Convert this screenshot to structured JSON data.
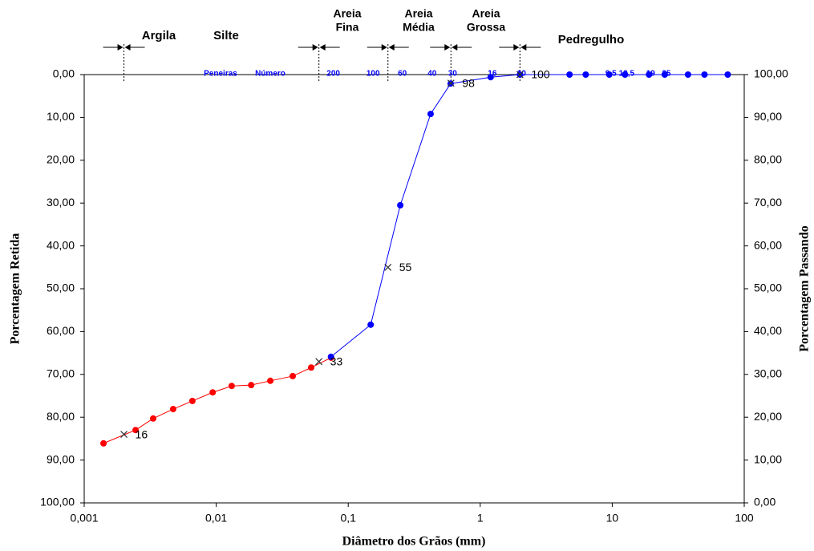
{
  "chart_data": {
    "type": "line",
    "xlabel": "Diâmetro dos Grãos (mm)",
    "ylabel": "Porcentagem Retida",
    "y2label": "Porcentagem Passando",
    "xscale": "log",
    "xlim": [
      0.001,
      100
    ],
    "xticks": [
      {
        "value": 0.001,
        "label": "0,001"
      },
      {
        "value": 0.01,
        "label": "0,01"
      },
      {
        "value": 0.1,
        "label": "0,1"
      },
      1,
      10,
      100
    ],
    "ylim": [
      100,
      0
    ],
    "yticks": [
      {
        "value": 0,
        "label": "0,00"
      },
      {
        "value": 10,
        "label": "10,00"
      },
      {
        "value": 20,
        "label": "20,00"
      },
      {
        "value": 30,
        "label": "30,00"
      },
      {
        "value": 40,
        "label": "40,00"
      },
      {
        "value": 50,
        "label": "50,00"
      },
      {
        "value": 60,
        "label": "60,00"
      },
      {
        "value": 70,
        "label": "70,00"
      },
      {
        "value": 80,
        "label": "80,00"
      },
      {
        "value": 90,
        "label": "90,00"
      },
      {
        "value": 100,
        "label": "100,00"
      }
    ],
    "y2lim": [
      0,
      100
    ],
    "y2ticks": [
      {
        "value": 100,
        "label": "100,00"
      },
      {
        "value": 90,
        "label": "90,00"
      },
      {
        "value": 80,
        "label": "80,00"
      },
      {
        "value": 70,
        "label": "70,00"
      },
      {
        "value": 60,
        "label": "60,00"
      },
      {
        "value": 50,
        "label": "50,00"
      },
      {
        "value": 40,
        "label": "40,00"
      },
      {
        "value": 30,
        "label": "30,00"
      },
      {
        "value": 20,
        "label": "20,00"
      },
      {
        "value": 10,
        "label": "10,00"
      },
      {
        "value": 0,
        "label": "0,00"
      }
    ],
    "series": [
      {
        "color": "#ff0000",
        "axis": "y2",
        "x": [
          0.0014,
          0.00245,
          0.00333,
          0.00472,
          0.0066,
          0.0094,
          0.0131,
          0.0184,
          0.0257,
          0.038,
          0.0524,
          0.0743
        ],
        "values": [
          13.9,
          17.0,
          19.7,
          21.9,
          23.8,
          25.8,
          27.3,
          27.5,
          28.5,
          29.6,
          31.6,
          33.9
        ]
      },
      {
        "color": "#0000ff",
        "axis": "y2",
        "x": [
          0.074,
          0.148,
          0.248,
          0.421,
          0.597,
          1.2,
          2.0,
          4.75,
          6.3,
          9.5,
          12.5,
          19,
          25,
          37.5,
          50,
          75
        ],
        "values": [
          34.1,
          41.6,
          69.5,
          90.8,
          97.9,
          99.4,
          100,
          100,
          100,
          100,
          100,
          100,
          100,
          100,
          100,
          100
        ]
      }
    ],
    "markers": [
      {
        "x": 0.002,
        "value": 16
      },
      {
        "x": 0.06,
        "value": 33
      },
      {
        "x": 0.2,
        "value": 55
      },
      {
        "x": 0.6,
        "value": 98
      },
      {
        "x": 2,
        "value": 100
      }
    ],
    "boundaries": [
      0.002,
      0.06,
      0.2,
      0.6,
      2
    ],
    "soil_classes": [
      [
        "Argila"
      ],
      [
        "Silte"
      ],
      [
        "Areia",
        "Fina"
      ],
      [
        "Areia",
        "Média"
      ],
      [
        "Areia",
        "Grossa"
      ],
      [
        "Pedregulho"
      ]
    ],
    "sieve_title": [
      "Peneiras",
      "Número"
    ],
    "sieves": [
      {
        "x": 0.075,
        "label": "200"
      },
      {
        "x": 0.15,
        "label": "100"
      },
      {
        "x": 0.25,
        "label": "60"
      },
      {
        "x": 0.42,
        "label": "40"
      },
      {
        "x": 0.6,
        "label": "30"
      },
      {
        "x": 1.2,
        "label": "16"
      },
      {
        "x": 2,
        "label": "10"
      },
      {
        "x": 9.5,
        "label": "9,5"
      },
      {
        "x": 12.5,
        "label": "12,5"
      },
      {
        "x": 19,
        "label": "19"
      },
      {
        "x": 25,
        "label": "25"
      }
    ]
  }
}
